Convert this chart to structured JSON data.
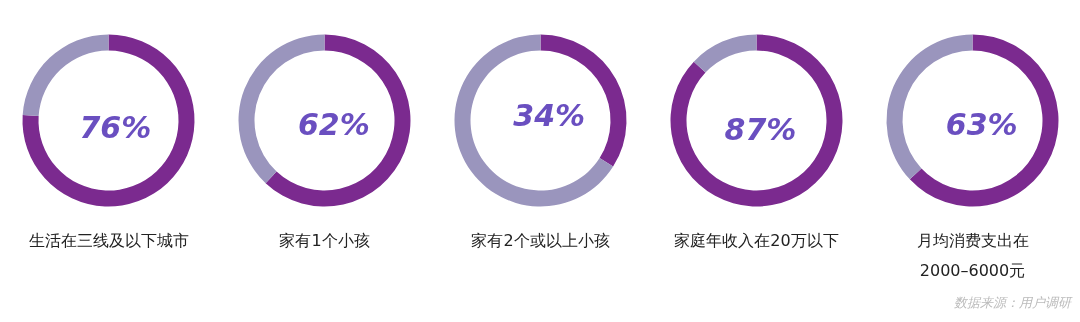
{
  "chart_data": [
    {
      "type": "donut",
      "title": "生活在三线及以下城市",
      "categories": [
        null,
        null
      ],
      "values": [
        76,
        24
      ],
      "colors": [
        "#7b2a8f",
        "#9a95bd"
      ],
      "value_labels": [
        "76%",
        null
      ]
    },
    {
      "type": "donut",
      "title": "家有1个小孩",
      "categories": [
        null,
        null
      ],
      "values": [
        62,
        38
      ],
      "colors": [
        "#7b2a8f",
        "#9a95bd"
      ],
      "value_labels": [
        "62%",
        null
      ]
    },
    {
      "type": "donut",
      "title": "家有2个或以上小孩",
      "categories": [
        null,
        null
      ],
      "values": [
        34,
        66
      ],
      "colors": [
        "#7b2a8f",
        "#9a95bd"
      ],
      "value_labels": [
        "34%",
        null
      ]
    },
    {
      "type": "donut",
      "title": "家庭年收入在20万以下",
      "categories": [
        null,
        null
      ],
      "values": [
        87,
        13
      ],
      "colors": [
        "#7b2a8f",
        "#9a95bd"
      ],
      "value_labels": [
        "87%",
        null
      ]
    },
    {
      "type": "donut",
      "title": "月均消费支出在2000–6000元",
      "categories": [
        null,
        null
      ],
      "values": [
        63,
        37
      ],
      "colors": [
        "#7b2a8f",
        "#9a95bd"
      ],
      "value_labels": [
        "63%",
        null
      ],
      "annotations": [
        "数据来源：用户调研"
      ]
    }
  ]
}
